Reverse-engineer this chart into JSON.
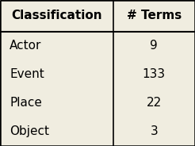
{
  "headers": [
    "Classification",
    "# Terms"
  ],
  "rows": [
    [
      "Actor",
      "9"
    ],
    [
      "Event",
      "133"
    ],
    [
      "Place",
      "22"
    ],
    [
      "Object",
      "3"
    ]
  ],
  "bg_color": "#f0ede0",
  "border_color": "#000000",
  "header_fontsize": 11,
  "body_fontsize": 11,
  "col_split": 0.58
}
